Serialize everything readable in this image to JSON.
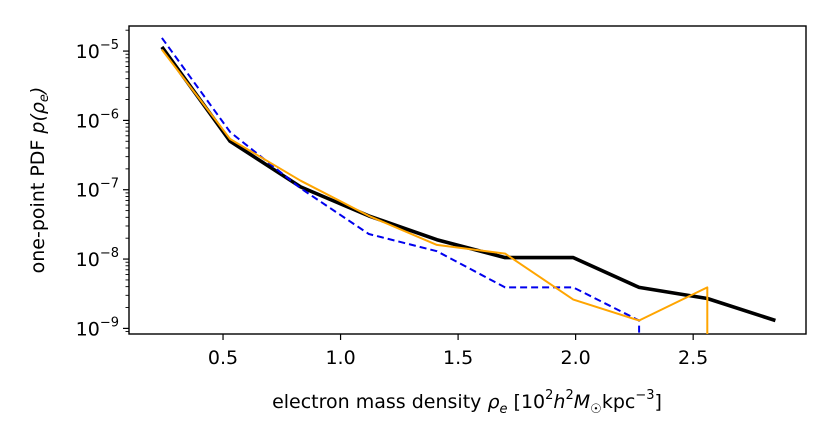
{
  "chart_data": {
    "type": "line",
    "xlabel": "electron mass density ρe [10²h²M☉kpc⁻³]",
    "ylabel": "one-point PDF p(ρe)",
    "xlim": [
      0.1,
      2.98
    ],
    "ylim": [
      8.3e-10,
      2.3e-05
    ],
    "y_scale": "log",
    "grid": false,
    "x_ticks": [
      {
        "value": 0.5,
        "label": "0.5"
      },
      {
        "value": 1.0,
        "label": "1.0"
      },
      {
        "value": 1.5,
        "label": "1.5"
      },
      {
        "value": 2.0,
        "label": "2.0"
      },
      {
        "value": 2.5,
        "label": "2.5"
      }
    ],
    "y_ticks": [
      {
        "value": 1e-05,
        "mantissa": "10",
        "exponent": "−5"
      },
      {
        "value": 1e-06,
        "mantissa": "10",
        "exponent": "−6"
      },
      {
        "value": 1e-07,
        "mantissa": "10",
        "exponent": "−7"
      },
      {
        "value": 1e-08,
        "mantissa": "10",
        "exponent": "−8"
      },
      {
        "value": 1e-09,
        "mantissa": "10",
        "exponent": "−9"
      }
    ],
    "series": [
      {
        "color": "#000000",
        "style": "solid-thick",
        "points": [
          [
            0.24,
            1.15e-05
          ],
          [
            0.53,
            5e-07
          ],
          [
            0.83,
            1.1e-07
          ],
          [
            1.12,
            4.2e-08
          ],
          [
            1.41,
            1.9e-08
          ],
          [
            1.7,
            1.05e-08
          ],
          [
            1.99,
            1.05e-08
          ],
          [
            2.27,
            3.9e-09
          ],
          [
            2.56,
            2.7e-09
          ],
          [
            2.85,
            1.3e-09
          ]
        ]
      },
      {
        "color": "#0000ee",
        "style": "dashed",
        "points": [
          [
            0.24,
            1.55e-05
          ],
          [
            0.53,
            6.8e-07
          ],
          [
            0.83,
            1.05e-07
          ],
          [
            1.12,
            2.3e-08
          ],
          [
            1.41,
            1.3e-08
          ],
          [
            1.7,
            3.9e-09
          ],
          [
            1.99,
            3.9e-09
          ],
          [
            2.27,
            1.3e-09
          ],
          [
            2.27,
            8.3e-10
          ]
        ]
      },
      {
        "color": "#ffa500",
        "style": "solid-thin",
        "points": [
          [
            0.24,
            1.05e-05
          ],
          [
            0.53,
            5.4e-07
          ],
          [
            0.83,
            1.35e-07
          ],
          [
            1.12,
            4.2e-08
          ],
          [
            1.41,
            1.6e-08
          ],
          [
            1.7,
            1.2e-08
          ],
          [
            1.99,
            2.6e-09
          ],
          [
            2.27,
            1.3e-09
          ],
          [
            2.56,
            3.9e-09
          ],
          [
            2.56,
            8.3e-10
          ]
        ]
      }
    ]
  }
}
